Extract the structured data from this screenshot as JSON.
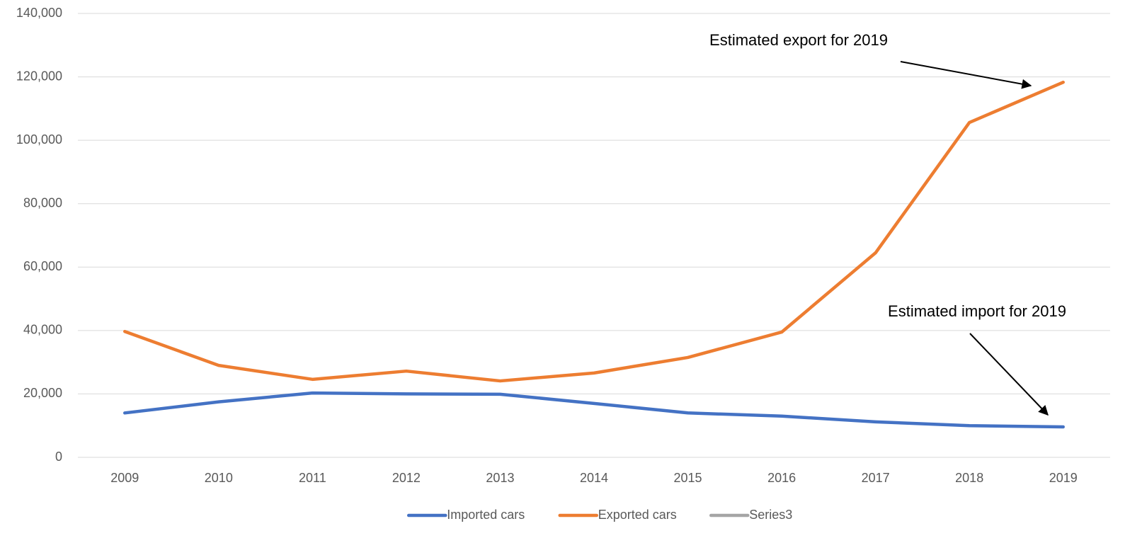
{
  "chart_data": {
    "type": "line",
    "categories": [
      "2009",
      "2010",
      "2011",
      "2012",
      "2013",
      "2014",
      "2015",
      "2016",
      "2017",
      "2018",
      "2019"
    ],
    "series": [
      {
        "name": "Imported cars",
        "color": "#4472c4",
        "values": [
          14000,
          17500,
          20300,
          20000,
          19900,
          17000,
          14000,
          13000,
          11200,
          10000,
          9600
        ]
      },
      {
        "name": "Exported cars",
        "color": "#ed7d31",
        "values": [
          39700,
          29000,
          24600,
          27200,
          24100,
          26600,
          31500,
          39500,
          64500,
          105600,
          118300
        ]
      },
      {
        "name": "Series3",
        "color": "#a5a5a5",
        "values": [
          null,
          null,
          null,
          null,
          null,
          null,
          null,
          null,
          null,
          null,
          null
        ]
      }
    ],
    "ylim": [
      0,
      140000
    ],
    "yticks": [
      0,
      {
        "value": 20000,
        "label": "20,000"
      },
      {
        "value": 40000,
        "label": "40,000"
      },
      {
        "value": 60000,
        "label": "60,000"
      },
      {
        "value": 80000,
        "label": "80,000"
      },
      {
        "value": 100000,
        "label": "100,000"
      },
      {
        "value": 120000,
        "label": "120,000"
      },
      {
        "value": 140000,
        "label": "140,000"
      }
    ],
    "grid": true,
    "legend": "bottom",
    "annotations": [
      "Estimated export for 2019",
      "Estimated import for 2019"
    ]
  }
}
